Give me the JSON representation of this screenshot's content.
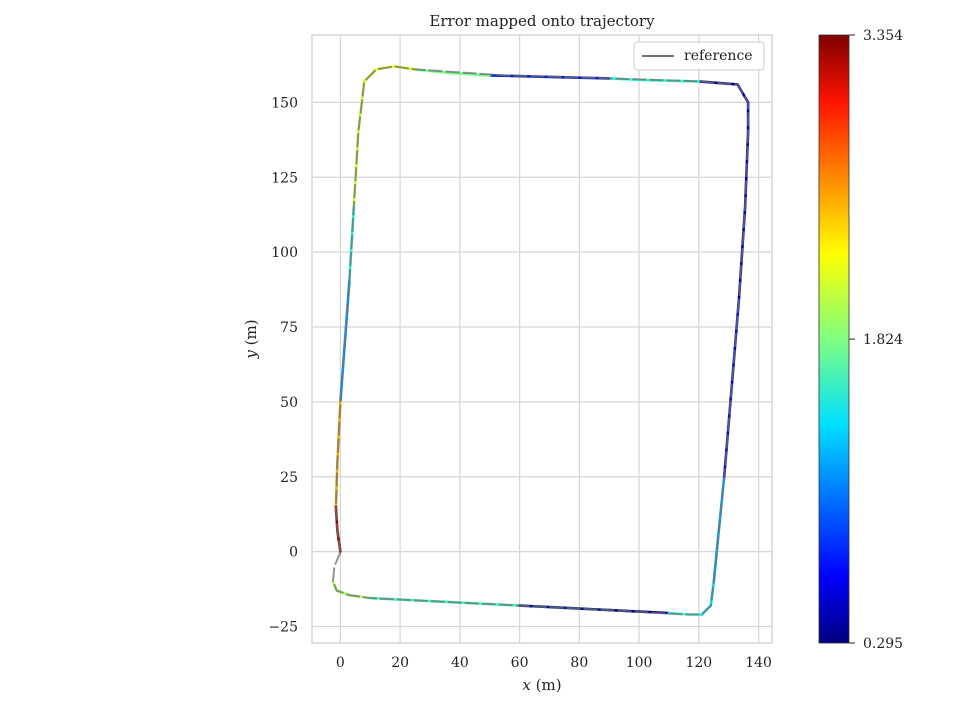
{
  "chart_data": {
    "type": "line",
    "title": "Error mapped onto trajectory",
    "xlabel": "x (m)",
    "ylabel": "y (m)",
    "xlabel_var": "x",
    "xlabel_unit": " (m)",
    "ylabel_var": "y",
    "ylabel_unit": " (m)",
    "xlim": [
      -9.5,
      144.5
    ],
    "ylim": [
      -30.5,
      172.5
    ],
    "xticks": [
      0,
      20,
      40,
      60,
      80,
      100,
      120,
      140
    ],
    "yticks": [
      -25,
      0,
      25,
      50,
      75,
      100,
      125,
      150
    ],
    "grid": true,
    "legend": {
      "position": "top-right",
      "entries": [
        "reference"
      ]
    },
    "series": [
      {
        "name": "reference",
        "color": "#707070",
        "x": [
          0,
          -2,
          -2.5,
          -1.2,
          3,
          10,
          30,
          60,
          90,
          115,
          121,
          124,
          125,
          126.5,
          128.5,
          131,
          133.5,
          135.5,
          136.5,
          136.5,
          133,
          120,
          90,
          55,
          25,
          18,
          12,
          8,
          6,
          4.5,
          3,
          1.5,
          0,
          -1,
          -1.5,
          -1,
          0
        ],
        "y": [
          0,
          -5,
          -10,
          -13,
          -14.5,
          -15.5,
          -16.5,
          -18,
          -19.5,
          -21,
          -21,
          -18,
          -10,
          5,
          25,
          55,
          85,
          115,
          140,
          150,
          156,
          157,
          158,
          159,
          161,
          162,
          161,
          157,
          140,
          115,
          90,
          70,
          50,
          30,
          15,
          7,
          0
        ]
      }
    ],
    "colorbar": {
      "min": 0.295,
      "max": 3.354,
      "ticks": [
        "3.354",
        "1.824",
        "0.295"
      ],
      "tick_values": [
        3.354,
        1.824,
        0.295
      ],
      "colormap": "jet"
    },
    "error_segments": [
      {
        "x": [
          -2.5,
          -1.2,
          3,
          10
        ],
        "y": [
          -10,
          -13,
          -14.5,
          -15.5
        ],
        "error": 1.95,
        "color": "#a8ff5a"
      },
      {
        "x": [
          10,
          30,
          60
        ],
        "y": [
          -15.5,
          -16.5,
          -18
        ],
        "error": 1.62,
        "color": "#3dffbb"
      },
      {
        "x": [
          60,
          80,
          90
        ],
        "y": [
          -18,
          -19,
          -19.5
        ],
        "error": 0.62,
        "color": "#00188a"
      },
      {
        "x": [
          90,
          100,
          110
        ],
        "y": [
          -19.5,
          -20,
          -20.5
        ],
        "error": 0.33,
        "color": "#00008f"
      },
      {
        "x": [
          110,
          117,
          121
        ],
        "y": [
          -20.5,
          -21,
          -21
        ],
        "error": 1.55,
        "color": "#2bffd0"
      },
      {
        "x": [
          121,
          124,
          125
        ],
        "y": [
          -21,
          -18,
          -10
        ],
        "error": 1.4,
        "color": "#00e0ff"
      },
      {
        "x": [
          125,
          126.5,
          128.5
        ],
        "y": [
          -10,
          5,
          25
        ],
        "error": 1.25,
        "color": "#00a8ff"
      },
      {
        "x": [
          128.5,
          131,
          133.5
        ],
        "y": [
          25,
          55,
          85
        ],
        "error": 0.45,
        "color": "#000cc4"
      },
      {
        "x": [
          133.5,
          135.5,
          136.5,
          136.5
        ],
        "y": [
          85,
          115,
          140,
          150
        ],
        "error": 0.4,
        "color": "#0000b0"
      },
      {
        "x": [
          136.5,
          133,
          120
        ],
        "y": [
          150,
          156,
          157
        ],
        "error": 0.32,
        "color": "#000090"
      },
      {
        "x": [
          120,
          100,
          90
        ],
        "y": [
          157,
          157.5,
          158
        ],
        "error": 1.55,
        "color": "#2bffd0"
      },
      {
        "x": [
          90,
          70,
          50
        ],
        "y": [
          158,
          158.5,
          159
        ],
        "error": 0.55,
        "color": "#001ec8"
      },
      {
        "x": [
          50,
          35,
          25
        ],
        "y": [
          159,
          160,
          161
        ],
        "error": 1.8,
        "color": "#6eff8a"
      },
      {
        "x": [
          25,
          18,
          12,
          8
        ],
        "y": [
          161,
          162,
          161,
          157
        ],
        "error": 2.15,
        "color": "#e6ff16"
      },
      {
        "x": [
          8,
          6,
          4.5
        ],
        "y": [
          157,
          140,
          115
        ],
        "error": 2.05,
        "color": "#c8ff36"
      },
      {
        "x": [
          4.5,
          3
        ],
        "y": [
          115,
          90
        ],
        "error": 1.55,
        "color": "#24f0d8"
      },
      {
        "x": [
          3,
          1.5,
          0
        ],
        "y": [
          90,
          70,
          50
        ],
        "error": 1.2,
        "color": "#0096ff"
      },
      {
        "x": [
          0,
          -1,
          -1.5
        ],
        "y": [
          50,
          30,
          15
        ],
        "error": 2.45,
        "color": "#ffb000"
      },
      {
        "x": [
          -1.5,
          -1,
          0
        ],
        "y": [
          15,
          7,
          0
        ],
        "error": 3.2,
        "color": "#9a0000"
      }
    ]
  }
}
